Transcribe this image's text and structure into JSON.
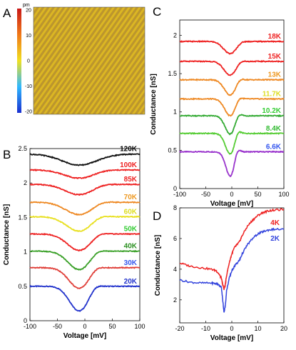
{
  "panel_labels": [
    "A",
    "B",
    "C",
    "D"
  ],
  "chart_data": [
    {
      "panel": "A",
      "type": "heatmap",
      "colorbar": {
        "unit": "pm",
        "ticks": [
          20,
          10,
          0,
          -10,
          -20
        ],
        "range": [
          -20,
          20
        ]
      },
      "colors": [
        "#1a2fd0",
        "#2fb8ff",
        "#f0e020",
        "#f07818",
        "#d81818"
      ]
    },
    {
      "panel": "B",
      "type": "line",
      "xlabel": "Voltage [mV]",
      "ylabel": "Conductance [nS]",
      "xlim": [
        -100,
        100
      ],
      "ylim": [
        0,
        2.5
      ],
      "xticks": [
        "-100",
        "-50",
        "0",
        "50",
        "100"
      ],
      "yticks": [
        "0",
        "0.5",
        "1",
        "1.5",
        "2",
        "2.5"
      ],
      "gap_center": -10,
      "series": [
        {
          "name": "20K",
          "color": "#2233cc",
          "label_color": "#2233cc",
          "baseline": 0.5,
          "dip": 0.36,
          "width": 25,
          "peak": 0.06
        },
        {
          "name": "30K",
          "color": "#e0403a",
          "label_color": "#3355ee",
          "baseline": 0.77,
          "dip": 0.3,
          "width": 27,
          "peak": 0.05
        },
        {
          "name": "40K",
          "color": "#3aa028",
          "label_color": "#2a9020",
          "baseline": 1.01,
          "dip": 0.27,
          "width": 29,
          "peak": 0.05
        },
        {
          "name": "50K",
          "color": "#ee2222",
          "label_color": "#33cc33",
          "baseline": 1.26,
          "dip": 0.24,
          "width": 31,
          "peak": 0.04
        },
        {
          "name": "60K",
          "color": "#e8e020",
          "label_color": "#dddd22",
          "baseline": 1.51,
          "dip": 0.21,
          "width": 33,
          "peak": 0.04
        },
        {
          "name": "70K",
          "color": "#ee8822",
          "label_color": "#ee9922",
          "baseline": 1.72,
          "dip": 0.18,
          "width": 35,
          "peak": 0.03
        },
        {
          "name": "85K",
          "color": "#ee2222",
          "label_color": "#ee2222",
          "baseline": 1.98,
          "dip": 0.15,
          "width": 37,
          "peak": 0.02
        },
        {
          "name": "100K",
          "color": "#ee2222",
          "label_color": "#ee2222",
          "baseline": 2.19,
          "dip": 0.12,
          "width": 39,
          "peak": 0.01
        },
        {
          "name": "120K",
          "color": "#111111",
          "label_color": "#000000",
          "baseline": 2.42,
          "dip": 0.16,
          "width": 45,
          "peak": 0.0
        }
      ]
    },
    {
      "panel": "C",
      "type": "line",
      "xlabel": "Voltage [mV]",
      "ylabel": "Conductance [nS]",
      "xlim": [
        -100,
        100
      ],
      "ylim": [
        0,
        2.2
      ],
      "xticks": [
        "-100",
        "-50",
        "0",
        "50",
        "100"
      ],
      "yticks": [
        "0",
        "0.5",
        "1",
        "1.5",
        "2"
      ],
      "gap_center": -3,
      "series": [
        {
          "name": "6.6K",
          "color": "#9933cc",
          "label_color": "#3355ee",
          "baseline": 0.48,
          "dip": 0.32,
          "width": 12,
          "peak": 0.08
        },
        {
          "name": "8.4K",
          "color": "#55cc33",
          "label_color": "#33bb33",
          "baseline": 0.72,
          "dip": 0.27,
          "width": 13,
          "peak": 0.07
        },
        {
          "name": "10.2K",
          "color": "#33aa33",
          "label_color": "#33cc33",
          "baseline": 0.95,
          "dip": 0.24,
          "width": 14,
          "peak": 0.06
        },
        {
          "name": "11.7K",
          "color": "#ee8822",
          "label_color": "#dddd22",
          "baseline": 1.17,
          "dip": 0.22,
          "width": 15,
          "peak": 0.05
        },
        {
          "name": "13K",
          "color": "#ee8822",
          "label_color": "#ee9922",
          "baseline": 1.42,
          "dip": 0.2,
          "width": 16,
          "peak": 0.04
        },
        {
          "name": "15K",
          "color": "#ee2222",
          "label_color": "#ee2222",
          "baseline": 1.66,
          "dip": 0.18,
          "width": 17,
          "peak": 0.03
        },
        {
          "name": "18K",
          "color": "#ee2222",
          "label_color": "#ee2222",
          "baseline": 1.92,
          "dip": 0.16,
          "width": 18,
          "peak": 0.02
        }
      ]
    },
    {
      "panel": "D",
      "type": "line",
      "xlabel": "Voltage [mV]",
      "ylabel": "Conductance [nS]",
      "xlim": [
        -20,
        20
      ],
      "ylim": [
        0.5,
        8
      ],
      "xticks": [
        "-20",
        "-10",
        "0",
        "10",
        "20"
      ],
      "yticks": [
        "2",
        "4",
        "6",
        "8"
      ],
      "series": [
        {
          "name": "4K",
          "color": "#ee2222",
          "label_color": "#ee2222",
          "x": [
            -20,
            -16,
            -12,
            -8,
            -6,
            -5,
            -4,
            -3.5,
            -3,
            -2.5,
            -2,
            -1,
            0,
            1,
            2,
            3,
            4,
            6,
            8,
            10,
            12,
            14,
            16,
            20
          ],
          "y": [
            4.4,
            4.2,
            4.1,
            4.0,
            3.9,
            3.7,
            3.4,
            3.0,
            2.7,
            3.0,
            3.6,
            4.4,
            5.0,
            5.4,
            5.6,
            5.8,
            6.2,
            6.8,
            7.2,
            7.5,
            7.7,
            7.8,
            7.85,
            7.9
          ]
        },
        {
          "name": "2K",
          "color": "#3344dd",
          "label_color": "#3344dd",
          "x": [
            -20,
            -16,
            -12,
            -8,
            -6,
            -5,
            -4,
            -3.5,
            -3,
            -2.5,
            -2,
            -1,
            0,
            1,
            2,
            3,
            4,
            6,
            8,
            10,
            12,
            14,
            16,
            20
          ],
          "y": [
            3.3,
            3.15,
            3.1,
            3.1,
            3.05,
            3.0,
            2.8,
            2.0,
            1.2,
            1.6,
            2.6,
            3.4,
            3.9,
            4.2,
            4.4,
            4.6,
            5.0,
            5.6,
            6.0,
            6.3,
            6.45,
            6.55,
            6.6,
            6.6
          ]
        }
      ]
    }
  ]
}
